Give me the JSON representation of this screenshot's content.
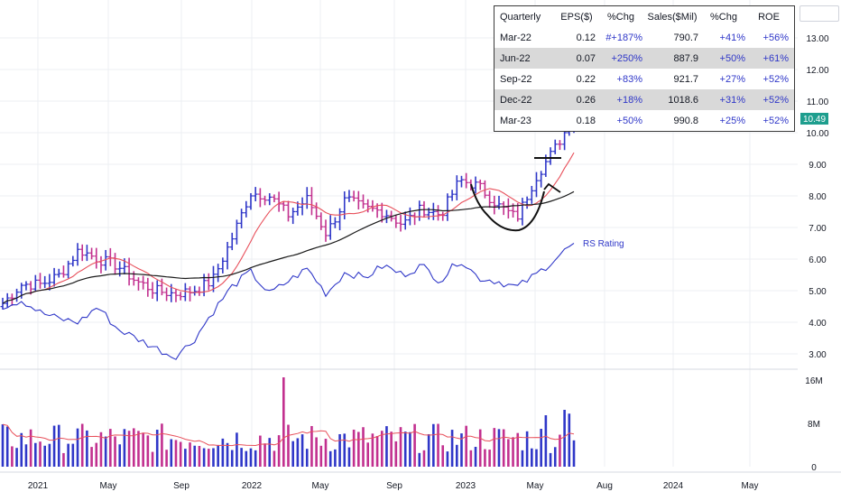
{
  "chart_data": {
    "type": "bar",
    "subtype": "ohlc-price-chart-with-volume",
    "x_axis_labels": [
      "2021",
      "May",
      "Sep",
      "2022",
      "May",
      "Sep",
      "2023",
      "May",
      "Aug",
      "2024",
      "May"
    ],
    "price_axis_labels": [
      "13.00",
      "12.00",
      "11.00",
      "10.00",
      "9.00",
      "8.00",
      "7.00",
      "6.00",
      "5.00",
      "4.00",
      "3.00"
    ],
    "price_ylim": [
      2.7,
      13.6
    ],
    "volume_axis_labels": [
      "16M",
      "8M",
      "0"
    ],
    "volume_ylim": [
      0,
      17
    ],
    "last_price_label": "10.49",
    "rs_label": "RS Rating",
    "grid": true,
    "price_series": [
      {
        "date": "2021-01",
        "value": 4.6
      },
      {
        "date": "2021-02",
        "value": 5.2
      },
      {
        "date": "2021-03",
        "value": 5.2
      },
      {
        "date": "2021-04",
        "value": 5.5
      },
      {
        "date": "2021-05",
        "value": 6.3
      },
      {
        "date": "2021-06",
        "value": 6.0
      },
      {
        "date": "2021-07",
        "value": 5.8
      },
      {
        "date": "2021-08",
        "value": 5.3
      },
      {
        "date": "2021-09",
        "value": 5.0
      },
      {
        "date": "2021-10",
        "value": 4.9
      },
      {
        "date": "2021-11",
        "value": 5.0
      },
      {
        "date": "2021-12",
        "value": 5.3
      },
      {
        "date": "2022-01",
        "value": 6.6
      },
      {
        "date": "2022-02",
        "value": 8.1
      },
      {
        "date": "2022-03",
        "value": 8.0
      },
      {
        "date": "2022-04",
        "value": 7.4
      },
      {
        "date": "2022-05",
        "value": 7.9
      },
      {
        "date": "2022-06",
        "value": 6.8
      },
      {
        "date": "2022-07",
        "value": 7.9
      },
      {
        "date": "2022-08",
        "value": 7.6
      },
      {
        "date": "2022-09",
        "value": 7.5
      },
      {
        "date": "2022-10",
        "value": 7.1
      },
      {
        "date": "2022-11",
        "value": 7.6
      },
      {
        "date": "2022-12",
        "value": 7.4
      },
      {
        "date": "2023-01",
        "value": 8.5
      },
      {
        "date": "2023-02",
        "value": 8.3
      },
      {
        "date": "2023-03",
        "value": 7.7
      },
      {
        "date": "2023-04",
        "value": 7.3
      },
      {
        "date": "2023-05",
        "value": 8.6
      },
      {
        "date": "2023-06",
        "value": 9.5
      },
      {
        "date": "2023-06-15",
        "value": 10.49
      }
    ],
    "rs_series": [
      4.5,
      4.7,
      4.3,
      4.1,
      4.0,
      4.5,
      3.8,
      3.5,
      3.2,
      2.9,
      3.4,
      4.3,
      5.1,
      5.6,
      4.9,
      5.3,
      5.7,
      4.9,
      5.6,
      5.4,
      5.8,
      5.5,
      5.8,
      5.3,
      6.0,
      5.4,
      5.3,
      5.1,
      5.5,
      6.0,
      6.5
    ]
  },
  "table": {
    "headers": [
      "Quarterly",
      "EPS($)",
      "%Chg",
      "Sales($Mil)",
      "%Chg",
      "ROE"
    ],
    "rows": [
      [
        "Mar-22",
        "0.12",
        "#+187%",
        "790.7",
        "+41%",
        "+56%"
      ],
      [
        "Jun-22",
        "0.07",
        "+250%",
        "887.9",
        "+50%",
        "+61%"
      ],
      [
        "Sep-22",
        "0.22",
        "+83%",
        "921.7",
        "+27%",
        "+52%"
      ],
      [
        "Dec-22",
        "0.26",
        "+18%",
        "1018.6",
        "+31%",
        "+52%"
      ],
      [
        "Mar-23",
        "0.18",
        "+50%",
        "990.8",
        "+25%",
        "+52%"
      ]
    ]
  },
  "colors": {
    "up_bar": "#2f37c8",
    "down_bar": "#c2308f",
    "ma_fast": "#e8505b",
    "ma_slow": "#1a1a1a",
    "rs_line": "#2f37c8",
    "last_price_bg": "#1e9e8e",
    "grid": "#eceff3"
  }
}
